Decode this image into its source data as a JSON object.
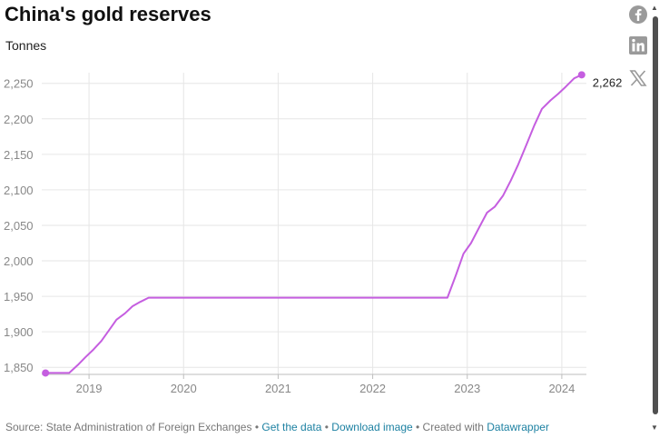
{
  "header": {
    "title": "China's gold reserves",
    "subtitle": "Tonnes"
  },
  "share": {
    "facebook_icon": "facebook-icon",
    "linkedin_icon": "linkedin-icon",
    "x_icon": "x-icon"
  },
  "colors": {
    "line": "#c55ee0",
    "grid": "#e6e6e6",
    "axis": "#bdbdbd"
  },
  "footer": {
    "source": "Source: State Administration of Foreign Exchanges",
    "sep": " • ",
    "get_data": "Get the data",
    "download": "Download image",
    "created": "Created with ",
    "datawrapper": "Datawrapper"
  },
  "chart_data": {
    "type": "line",
    "title": "China's gold reserves",
    "ylabel": "Tonnes",
    "xlabel": "",
    "ylim": [
      1840,
      2265
    ],
    "xlim": [
      2018.5,
      2024.26
    ],
    "y_ticks": [
      1850,
      1900,
      1950,
      2000,
      2050,
      2100,
      2150,
      2200,
      2250
    ],
    "y_tick_labels": [
      "1,850",
      "1,900",
      "1,950",
      "2,000",
      "2,050",
      "2,100",
      "2,150",
      "2,200",
      "2,250"
    ],
    "x_ticks": [
      2019,
      2020,
      2021,
      2022,
      2023,
      2024
    ],
    "x_tick_labels": [
      "2019",
      "2020",
      "2021",
      "2022",
      "2023",
      "2024"
    ],
    "end_label": "2,262",
    "series": [
      {
        "name": "Gold reserves",
        "points": [
          [
            2018.54,
            1842
          ],
          [
            2018.63,
            1842
          ],
          [
            2018.71,
            1842
          ],
          [
            2018.79,
            1842
          ],
          [
            2018.88,
            1853
          ],
          [
            2018.96,
            1864
          ],
          [
            2019.04,
            1874
          ],
          [
            2019.13,
            1887
          ],
          [
            2019.21,
            1902
          ],
          [
            2019.29,
            1917
          ],
          [
            2019.38,
            1926
          ],
          [
            2019.46,
            1936
          ],
          [
            2019.54,
            1942
          ],
          [
            2019.63,
            1948
          ],
          [
            2019.71,
            1948
          ],
          [
            2019.79,
            1948
          ],
          [
            2019.88,
            1948
          ],
          [
            2019.96,
            1948
          ],
          [
            2020.5,
            1948
          ],
          [
            2021.0,
            1948
          ],
          [
            2021.5,
            1948
          ],
          [
            2022.0,
            1948
          ],
          [
            2022.5,
            1948
          ],
          [
            2022.63,
            1948
          ],
          [
            2022.71,
            1948
          ],
          [
            2022.79,
            1948
          ],
          [
            2022.88,
            1980
          ],
          [
            2022.96,
            2010
          ],
          [
            2023.04,
            2025
          ],
          [
            2023.13,
            2048
          ],
          [
            2023.21,
            2068
          ],
          [
            2023.29,
            2076
          ],
          [
            2023.38,
            2092
          ],
          [
            2023.46,
            2113
          ],
          [
            2023.54,
            2136
          ],
          [
            2023.63,
            2165
          ],
          [
            2023.71,
            2191
          ],
          [
            2023.79,
            2214
          ],
          [
            2023.88,
            2226
          ],
          [
            2023.96,
            2235
          ],
          [
            2024.04,
            2245
          ],
          [
            2024.13,
            2257
          ],
          [
            2024.21,
            2262
          ]
        ]
      }
    ]
  }
}
